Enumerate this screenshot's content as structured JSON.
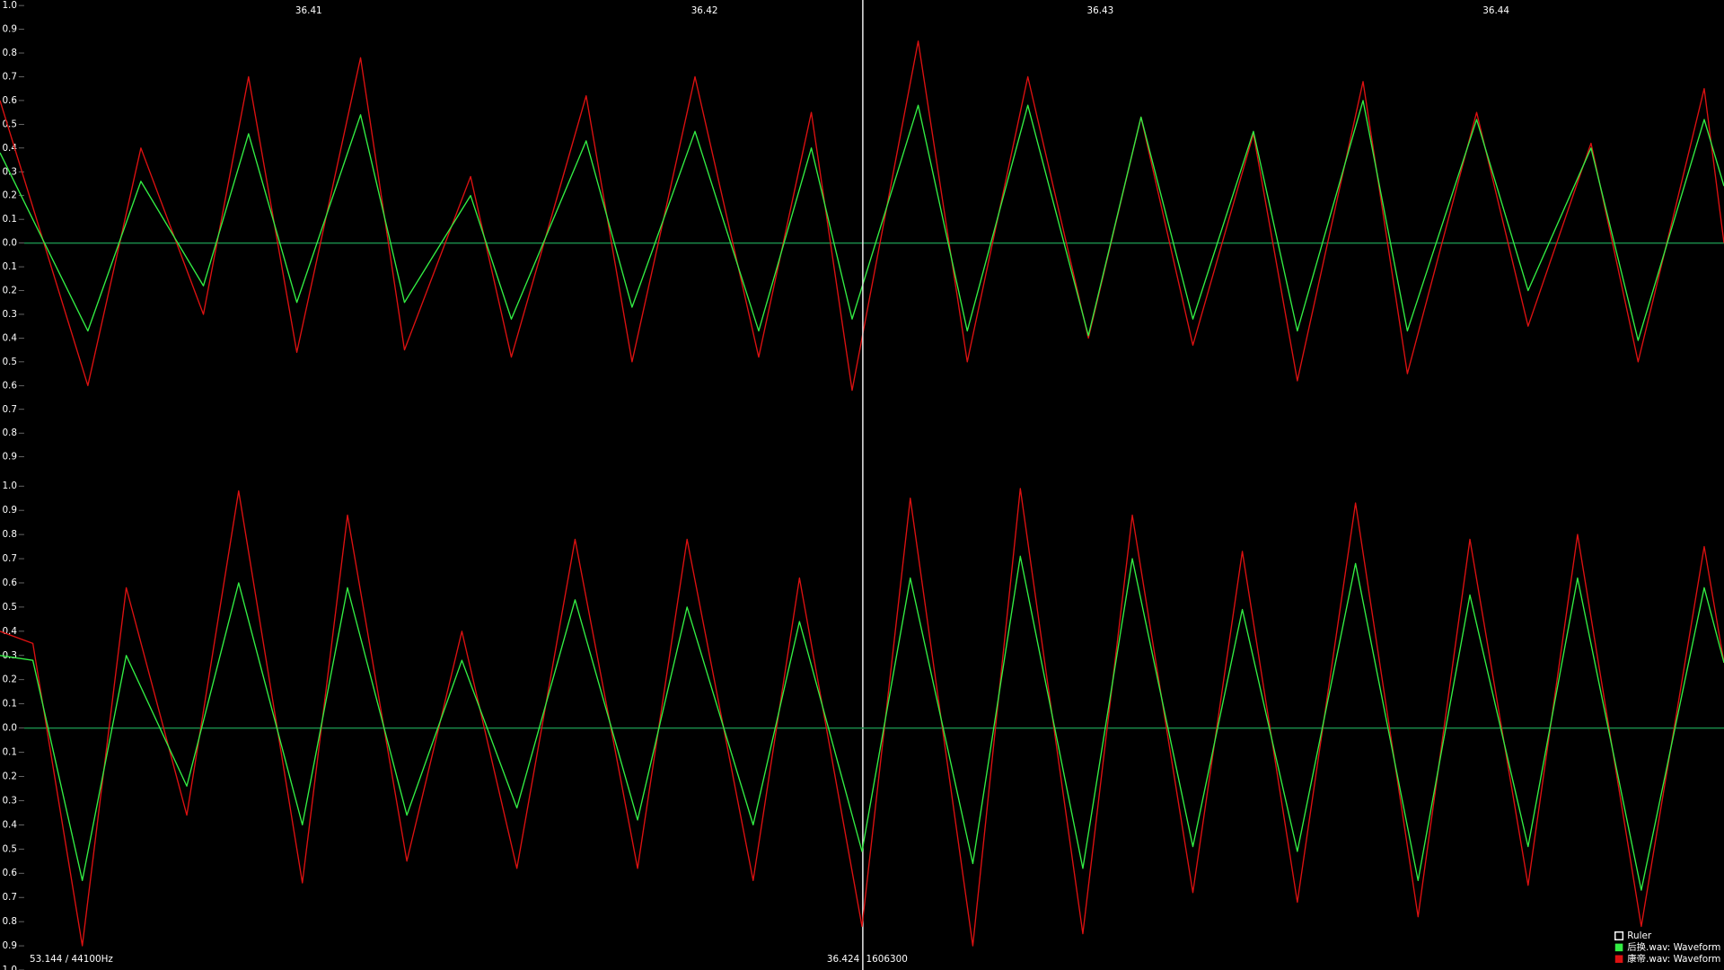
{
  "status": "53.144 / 44100Hz",
  "chart_data": [
    {
      "type": "line",
      "xlim": [
        36.4022,
        36.44576
      ],
      "ylim": [
        -1,
        1
      ],
      "xticks": [
        36.41,
        36.42,
        36.43,
        36.44
      ],
      "yticks": [
        {
          "value": 1,
          "label": "1.0"
        },
        {
          "value": 0.9,
          "label": "0.9"
        },
        {
          "value": 0.8,
          "label": "0.8"
        },
        {
          "value": 0.7,
          "label": "0.7"
        },
        {
          "value": 0.6,
          "label": "0.6"
        },
        {
          "value": 0.5,
          "label": "0.5"
        },
        {
          "value": 0.4,
          "label": "0.4"
        },
        {
          "value": 0.3,
          "label": "0.3"
        },
        {
          "value": 0.2,
          "label": "0.2"
        },
        {
          "value": 0.1,
          "label": "0.1"
        },
        {
          "value": 0,
          "label": "0.0"
        },
        {
          "value": -0.1,
          "label": "0.1"
        },
        {
          "value": -0.2,
          "label": "0.2"
        },
        {
          "value": -0.3,
          "label": "0.3"
        },
        {
          "value": -0.4,
          "label": "0.4"
        },
        {
          "value": -0.5,
          "label": "0.5"
        },
        {
          "value": -0.6,
          "label": "0.6"
        },
        {
          "value": -0.7,
          "label": "0.7"
        },
        {
          "value": -0.8,
          "label": "0.8"
        },
        {
          "value": -0.9,
          "label": "0.9"
        }
      ],
      "zero_line_color": "#1a8a4a",
      "ruler_label": "Ruler",
      "x": [
        36.4022,
        36.40442,
        36.40576,
        36.40734,
        36.40848,
        36.4097,
        36.41131,
        36.41242,
        36.41409,
        36.41512,
        36.41701,
        36.41817,
        36.41976,
        36.42137,
        36.4227,
        36.42373,
        36.4254,
        36.42664,
        36.42817,
        36.4297,
        36.43103,
        36.43234,
        36.43387,
        36.43498,
        36.43664,
        36.43776,
        36.43951,
        36.44081,
        36.4424,
        36.44359,
        36.44526,
        36.44576
      ],
      "series": [
        {
          "name": "康帝.wav: Waveform",
          "color": "#dd1111",
          "values": [
            0.6,
            -0.6,
            0.4,
            -0.3,
            0.7,
            -0.46,
            0.78,
            -0.45,
            0.28,
            -0.48,
            0.62,
            -0.5,
            0.7,
            -0.48,
            0.55,
            -0.62,
            0.85,
            -0.5,
            0.7,
            -0.4,
            0.53,
            -0.43,
            0.46,
            -0.58,
            0.68,
            -0.55,
            0.55,
            -0.35,
            0.42,
            -0.5,
            0.65,
            0.0
          ]
        },
        {
          "name": "后换.wav: Waveform",
          "color": "#33ee44",
          "values": [
            0.38,
            -0.37,
            0.26,
            -0.18,
            0.46,
            -0.25,
            0.54,
            -0.25,
            0.2,
            -0.32,
            0.43,
            -0.27,
            0.47,
            -0.37,
            0.4,
            -0.32,
            0.58,
            -0.37,
            0.58,
            -0.39,
            0.53,
            -0.32,
            0.47,
            -0.37,
            0.6,
            -0.37,
            0.52,
            -0.2,
            0.4,
            -0.41,
            0.52,
            0.24
          ]
        }
      ],
      "cursor_time": 36.424,
      "cursor_frame": 1606300
    },
    {
      "type": "line",
      "xlim": [
        36.4022,
        36.44576
      ],
      "ylim": [
        -1,
        1
      ],
      "yticks": [
        {
          "value": 1,
          "label": "1.0"
        },
        {
          "value": 0.9,
          "label": "0.9"
        },
        {
          "value": 0.8,
          "label": "0.8"
        },
        {
          "value": 0.7,
          "label": "0.7"
        },
        {
          "value": 0.6,
          "label": "0.6"
        },
        {
          "value": 0.5,
          "label": "0.5"
        },
        {
          "value": 0.4,
          "label": "0.4"
        },
        {
          "value": 0.3,
          "label": "0.3"
        },
        {
          "value": 0.2,
          "label": "0.2"
        },
        {
          "value": 0.1,
          "label": "0.1"
        },
        {
          "value": 0,
          "label": "0.0"
        },
        {
          "value": -0.1,
          "label": "0.1"
        },
        {
          "value": -0.2,
          "label": "0.2"
        },
        {
          "value": -0.3,
          "label": "0.3"
        },
        {
          "value": -0.4,
          "label": "0.4"
        },
        {
          "value": -0.5,
          "label": "0.5"
        },
        {
          "value": -0.6,
          "label": "0.6"
        },
        {
          "value": -0.7,
          "label": "0.7"
        },
        {
          "value": -0.8,
          "label": "0.8"
        },
        {
          "value": -0.9,
          "label": "0.9"
        },
        {
          "value": -1,
          "label": "1.0"
        }
      ],
      "zero_line_color": "#1a8a4a",
      "x": [
        36.4022,
        36.40303,
        36.40428,
        36.40539,
        36.40692,
        36.40823,
        36.40984,
        36.41098,
        36.41248,
        36.41387,
        36.41526,
        36.41673,
        36.41831,
        36.41956,
        36.42123,
        36.4224,
        36.42398,
        36.4252,
        36.42678,
        36.42798,
        36.42956,
        36.43081,
        36.43234,
        36.43359,
        36.43498,
        36.43645,
        36.43803,
        36.43934,
        36.44081,
        36.44206,
        36.44367,
        36.44526,
        36.44576
      ],
      "series": [
        {
          "color": "#dd1111",
          "values": [
            0.4,
            0.35,
            -0.9,
            0.58,
            -0.36,
            0.98,
            -0.64,
            0.88,
            -0.55,
            0.4,
            -0.58,
            0.78,
            -0.58,
            0.78,
            -0.63,
            0.62,
            -0.82,
            0.95,
            -0.9,
            0.99,
            -0.85,
            0.88,
            -0.68,
            0.73,
            -0.72,
            0.93,
            -0.78,
            0.78,
            -0.65,
            0.8,
            -0.82,
            0.75,
            0.27
          ]
        },
        {
          "color": "#33ee44",
          "values": [
            0.3,
            0.28,
            -0.63,
            0.3,
            -0.24,
            0.6,
            -0.4,
            0.58,
            -0.36,
            0.28,
            -0.33,
            0.53,
            -0.38,
            0.5,
            -0.4,
            0.44,
            -0.51,
            0.62,
            -0.56,
            0.71,
            -0.58,
            0.7,
            -0.49,
            0.49,
            -0.51,
            0.68,
            -0.63,
            0.55,
            -0.49,
            0.62,
            -0.67,
            0.58,
            0.27
          ]
        }
      ]
    }
  ]
}
